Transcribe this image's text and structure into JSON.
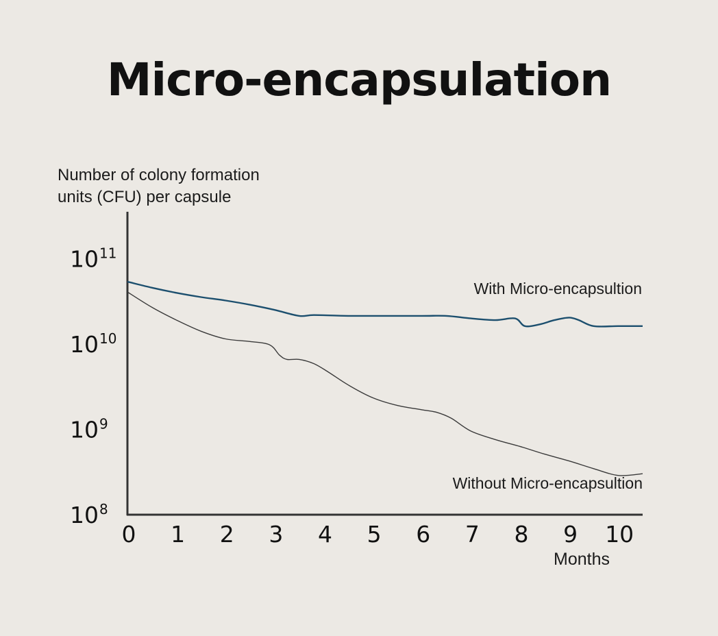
{
  "chart_data": {
    "type": "line",
    "title": "Micro-encapsulation",
    "ylabel_lines": [
      "Number of colony formation",
      "units (CFU) per capsule"
    ],
    "xlabel": "Months",
    "y_scale": "log10",
    "ylim": [
      8,
      11.55
    ],
    "xlim": [
      0,
      10.5
    ],
    "x_ticks": [
      0,
      1,
      2,
      3,
      4,
      5,
      6,
      7,
      8,
      9,
      10
    ],
    "x_tick_labels": [
      "0",
      "1",
      "2",
      "3",
      "4",
      "5",
      "6",
      "7",
      "8",
      "9",
      "10"
    ],
    "y_ticks": [
      {
        "value": 11,
        "base": "10",
        "exp": "11"
      },
      {
        "value": 10,
        "base": "10",
        "exp": "10"
      },
      {
        "value": 9,
        "base": "10",
        "exp": "9"
      },
      {
        "value": 8,
        "base": "10",
        "exp": "8"
      }
    ],
    "series": [
      {
        "name": "With Micro-encapsultion",
        "color": "#1c4f6e",
        "x": [
          0,
          0.5,
          1,
          1.5,
          2,
          2.5,
          3,
          3.5,
          3.8,
          4.5,
          5,
          6,
          6.5,
          7,
          7.5,
          7.9,
          8.1,
          8.4,
          8.7,
          9.0,
          9.2,
          9.5,
          10,
          10.5
        ],
        "y": [
          10.73,
          10.66,
          10.6,
          10.55,
          10.51,
          10.46,
          10.4,
          10.33,
          10.34,
          10.33,
          10.33,
          10.33,
          10.33,
          10.3,
          10.28,
          10.3,
          10.21,
          10.23,
          10.28,
          10.31,
          10.28,
          10.21,
          10.21,
          10.21
        ]
      },
      {
        "name": "Without Micro-encapsultion",
        "color": "#3a3a3a",
        "x": [
          0,
          0.5,
          1,
          1.5,
          2,
          2.5,
          2.9,
          3.1,
          3.25,
          3.5,
          3.8,
          4.1,
          4.5,
          5,
          5.5,
          6,
          6.3,
          6.6,
          7,
          7.5,
          8,
          8.5,
          9,
          9.5,
          10,
          10.5
        ],
        "y": [
          10.61,
          10.43,
          10.28,
          10.15,
          10.06,
          10.03,
          9.99,
          9.87,
          9.82,
          9.82,
          9.77,
          9.67,
          9.52,
          9.37,
          9.28,
          9.23,
          9.2,
          9.13,
          8.98,
          8.88,
          8.8,
          8.71,
          8.63,
          8.54,
          8.46,
          8.48
        ]
      }
    ]
  }
}
